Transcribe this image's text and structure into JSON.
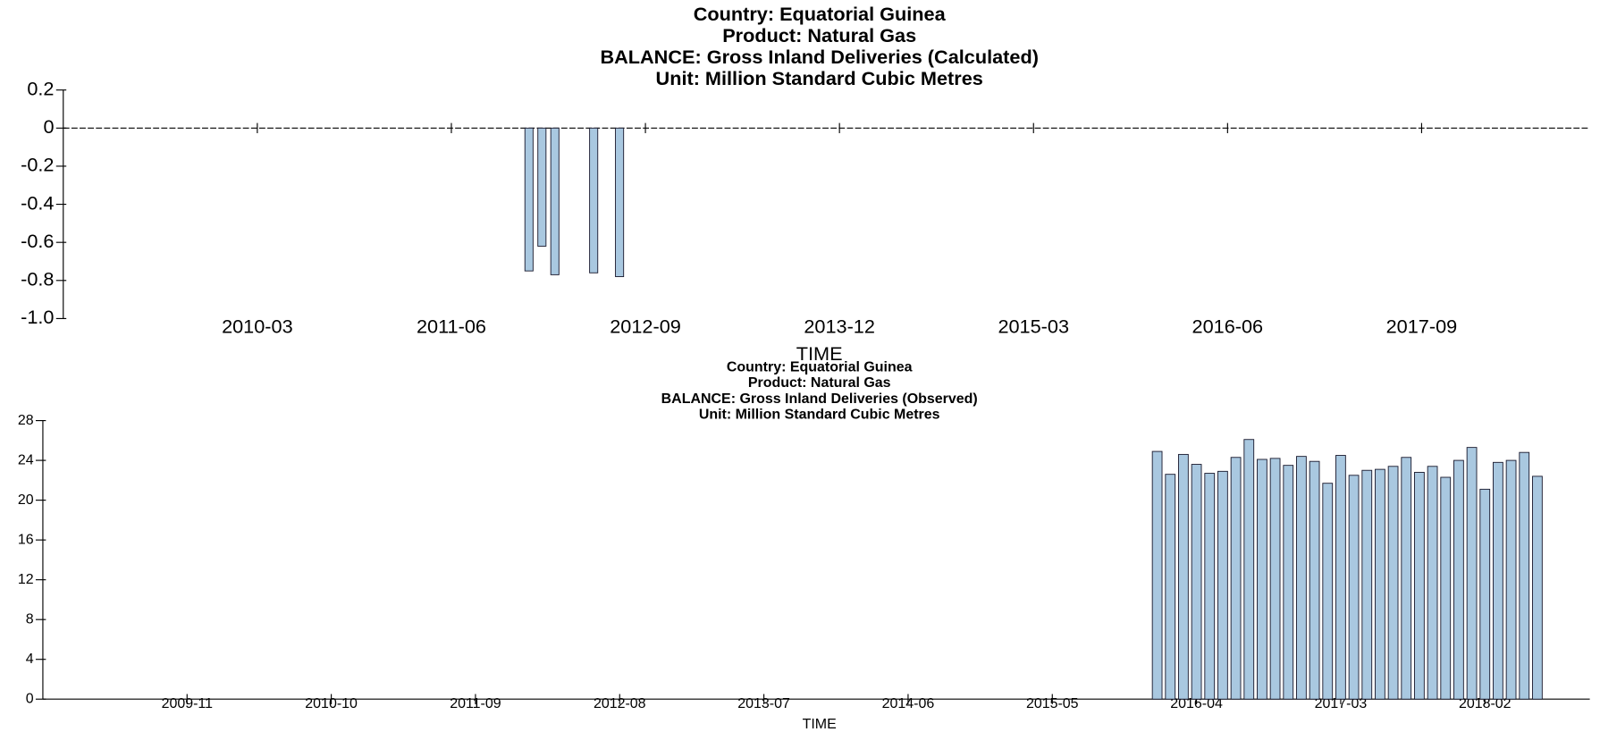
{
  "chart_data": [
    {
      "type": "bar",
      "title": [
        "Country: Equatorial Guinea",
        "Product: Natural Gas",
        "BALANCE: Gross Inland Deliveries (Calculated)",
        "Unit: Million Standard Cubic Metres"
      ],
      "x_label": "TIME",
      "x": [
        "2011-12",
        "2012-01",
        "2012-02",
        "2012-05",
        "2012-07"
      ],
      "values": [
        -0.75,
        -0.62,
        -0.77,
        -0.76,
        -0.78
      ],
      "color": "#a9c8e0",
      "xlim": [
        "2008-12",
        "2018-10"
      ],
      "xticks": [
        "2010-03",
        "2011-06",
        "2012-09",
        "2013-12",
        "2015-03",
        "2016-06",
        "2017-09"
      ],
      "ylim": [
        -1,
        0.2
      ],
      "yticks": [
        0.2,
        0,
        -0.2,
        -0.4,
        -0.6,
        -0.8,
        {
          "value": -1,
          "label": "-1.0"
        }
      ]
    },
    {
      "type": "bar",
      "title": [
        "Country: Equatorial Guinea",
        "Product: Natural Gas",
        "BALANCE: Gross Inland Deliveries (Observed)",
        "Unit: Million Standard Cubic Metres"
      ],
      "x_label": "TIME",
      "x": [
        "2016-01",
        "2016-02",
        "2016-03",
        "2016-04",
        "2016-05",
        "2016-06",
        "2016-07",
        "2016-08",
        "2016-09",
        "2016-10",
        "2016-11",
        "2016-12",
        "2017-01",
        "2017-02",
        "2017-03",
        "2017-04",
        "2017-05",
        "2017-06",
        "2017-07",
        "2017-08",
        "2017-09",
        "2017-10",
        "2017-11",
        "2017-12",
        "2018-01",
        "2018-02",
        "2018-03",
        "2018-04",
        "2018-05",
        "2018-06"
      ],
      "values": [
        24.9,
        22.6,
        24.6,
        23.6,
        22.7,
        22.9,
        24.3,
        26.1,
        24.1,
        24.2,
        23.5,
        24.4,
        23.9,
        21.7,
        24.5,
        22.5,
        23.0,
        23.1,
        23.4,
        24.3,
        22.8,
        23.4,
        22.3,
        24.0,
        25.3,
        21.1,
        23.8,
        24.0,
        24.8,
        22.4
      ],
      "color": "#a9c8e0",
      "xlim": [
        "2008-12",
        "2018-10"
      ],
      "xticks": [
        "2009-11",
        "2010-10",
        "2011-09",
        "2012-08",
        "2013-07",
        "2014-06",
        "2015-05",
        "2016-04",
        "2017-03",
        "2018-02"
      ],
      "ylim": [
        0,
        28
      ],
      "yticks": [
        28,
        24,
        20,
        16,
        12,
        8,
        4,
        0
      ]
    }
  ]
}
